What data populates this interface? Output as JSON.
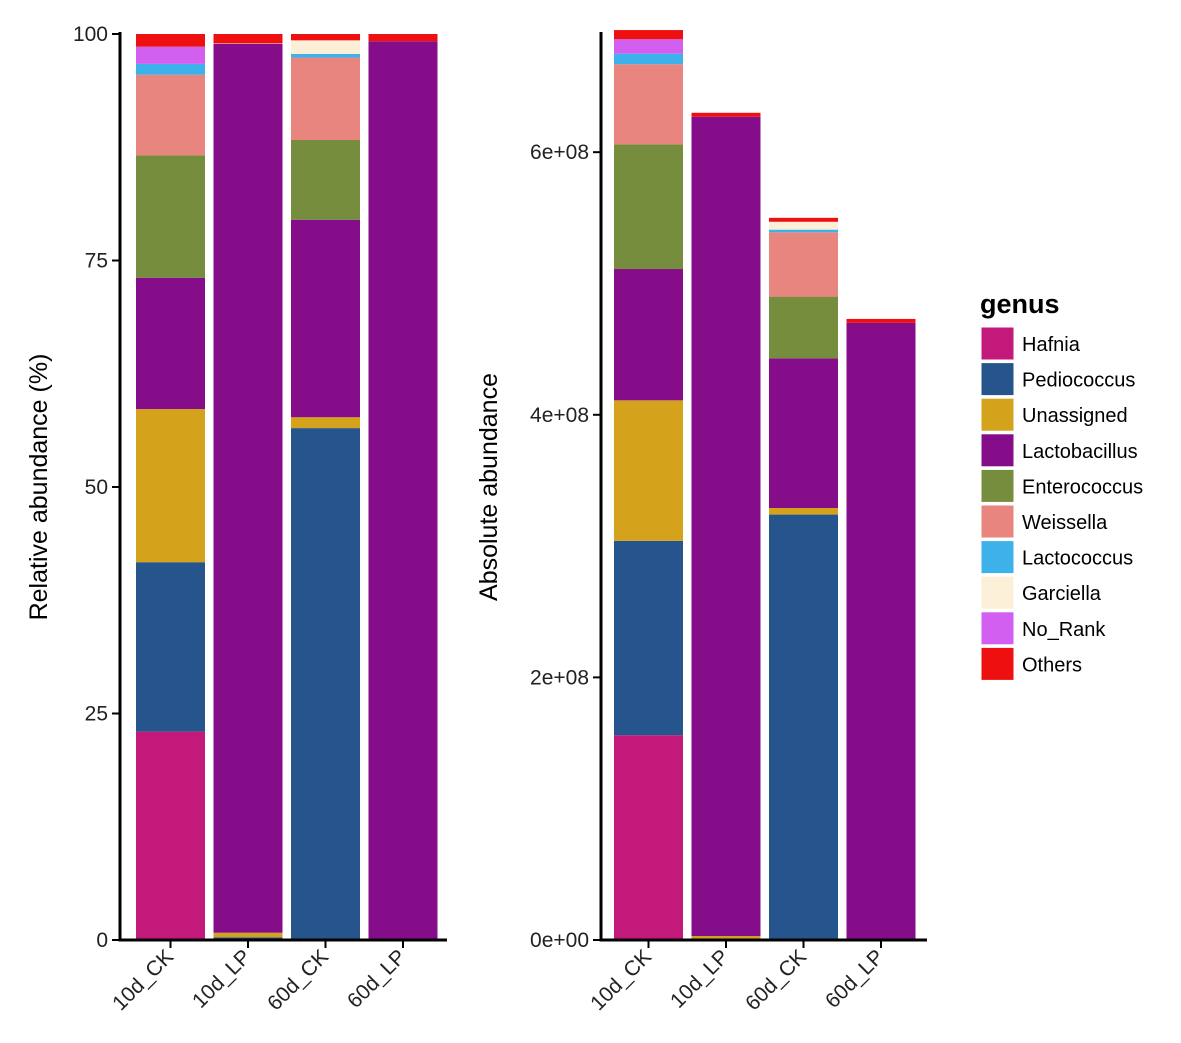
{
  "colors": {
    "Hafnia": "#c2197a",
    "Pediococcus": "#26548c",
    "Unassigned": "#d4a31b",
    "Lactobacillus": "#850d8a",
    "Enterococcus": "#758d3d",
    "Weissella": "#e8857e",
    "Lactococcus": "#3cb1ea",
    "Garciella": "#fcefd8",
    "No_Rank": "#d25ff0",
    "Others": "#ee1010"
  },
  "legend": {
    "title": "genus",
    "items": [
      "Hafnia",
      "Pediococcus",
      "Unassigned",
      "Lactobacillus",
      "Enterococcus",
      "Weissella",
      "Lactococcus",
      "Garciella",
      "No_Rank",
      "Others"
    ]
  },
  "chart_data": [
    {
      "type": "bar",
      "stacked": true,
      "title": "",
      "xlabel": "",
      "ylabel": "Relative abundance (%)",
      "ylim": [
        0,
        100
      ],
      "yticks": [
        0,
        25,
        50,
        75,
        100
      ],
      "ytick_labels": [
        "0",
        "25",
        "50",
        "75",
        "100"
      ],
      "categories": [
        "10d_CK",
        "10d_LP",
        "60d_CK",
        "60d_LP"
      ],
      "series": [
        {
          "name": "Hafnia",
          "values": [
            23.0,
            0.0,
            0.0,
            0.0
          ]
        },
        {
          "name": "Pediococcus",
          "values": [
            18.7,
            0.3,
            56.5,
            0.0
          ]
        },
        {
          "name": "Unassigned",
          "values": [
            16.9,
            0.5,
            1.2,
            0.0
          ]
        },
        {
          "name": "Lactobacillus",
          "values": [
            14.5,
            98.1,
            21.8,
            99.2
          ]
        },
        {
          "name": "Enterococcus",
          "values": [
            13.5,
            0.0,
            8.8,
            0.0
          ]
        },
        {
          "name": "Weissella",
          "values": [
            8.9,
            0.1,
            9.1,
            0.0
          ]
        },
        {
          "name": "Lactococcus",
          "values": [
            1.2,
            0.0,
            0.4,
            0.0
          ]
        },
        {
          "name": "Garciella",
          "values": [
            0.0,
            0.0,
            1.5,
            0.0
          ]
        },
        {
          "name": "No_Rank",
          "values": [
            1.9,
            0.0,
            0.0,
            0.0
          ]
        },
        {
          "name": "Others",
          "values": [
            1.4,
            1.0,
            0.7,
            0.8
          ]
        }
      ]
    },
    {
      "type": "bar",
      "stacked": true,
      "title": "",
      "xlabel": "",
      "ylabel": "Absolute abundance",
      "ylim": [
        0,
        690000000
      ],
      "yticks": [
        0,
        200000000,
        400000000,
        600000000
      ],
      "ytick_labels": [
        "0e+00",
        "2e+08",
        "4e+08",
        "6e+08"
      ],
      "categories": [
        "10d_CK",
        "10d_LP",
        "60d_CK",
        "60d_LP"
      ],
      "series": [
        {
          "name": "Hafnia",
          "values": [
            156000000,
            0,
            0,
            0
          ]
        },
        {
          "name": "Pediococcus",
          "values": [
            148000000,
            1000000,
            324000000,
            0
          ]
        },
        {
          "name": "Unassigned",
          "values": [
            107000000,
            2000000,
            5000000,
            0
          ]
        },
        {
          "name": "Lactobacillus",
          "values": [
            100000000,
            624000000,
            114000000,
            470000000
          ]
        },
        {
          "name": "Enterococcus",
          "values": [
            95000000,
            0,
            47000000,
            0
          ]
        },
        {
          "name": "Weissella",
          "values": [
            61000000,
            0,
            49000000,
            0
          ]
        },
        {
          "name": "Lactococcus",
          "values": [
            8000000,
            0,
            2000000,
            0
          ]
        },
        {
          "name": "Garciella",
          "values": [
            0,
            0,
            6000000,
            0
          ]
        },
        {
          "name": "No_Rank",
          "values": [
            11000000,
            0,
            0,
            0
          ]
        },
        {
          "name": "Others",
          "values": [
            7000000,
            3000000,
            3000000,
            3000000
          ]
        }
      ]
    }
  ]
}
